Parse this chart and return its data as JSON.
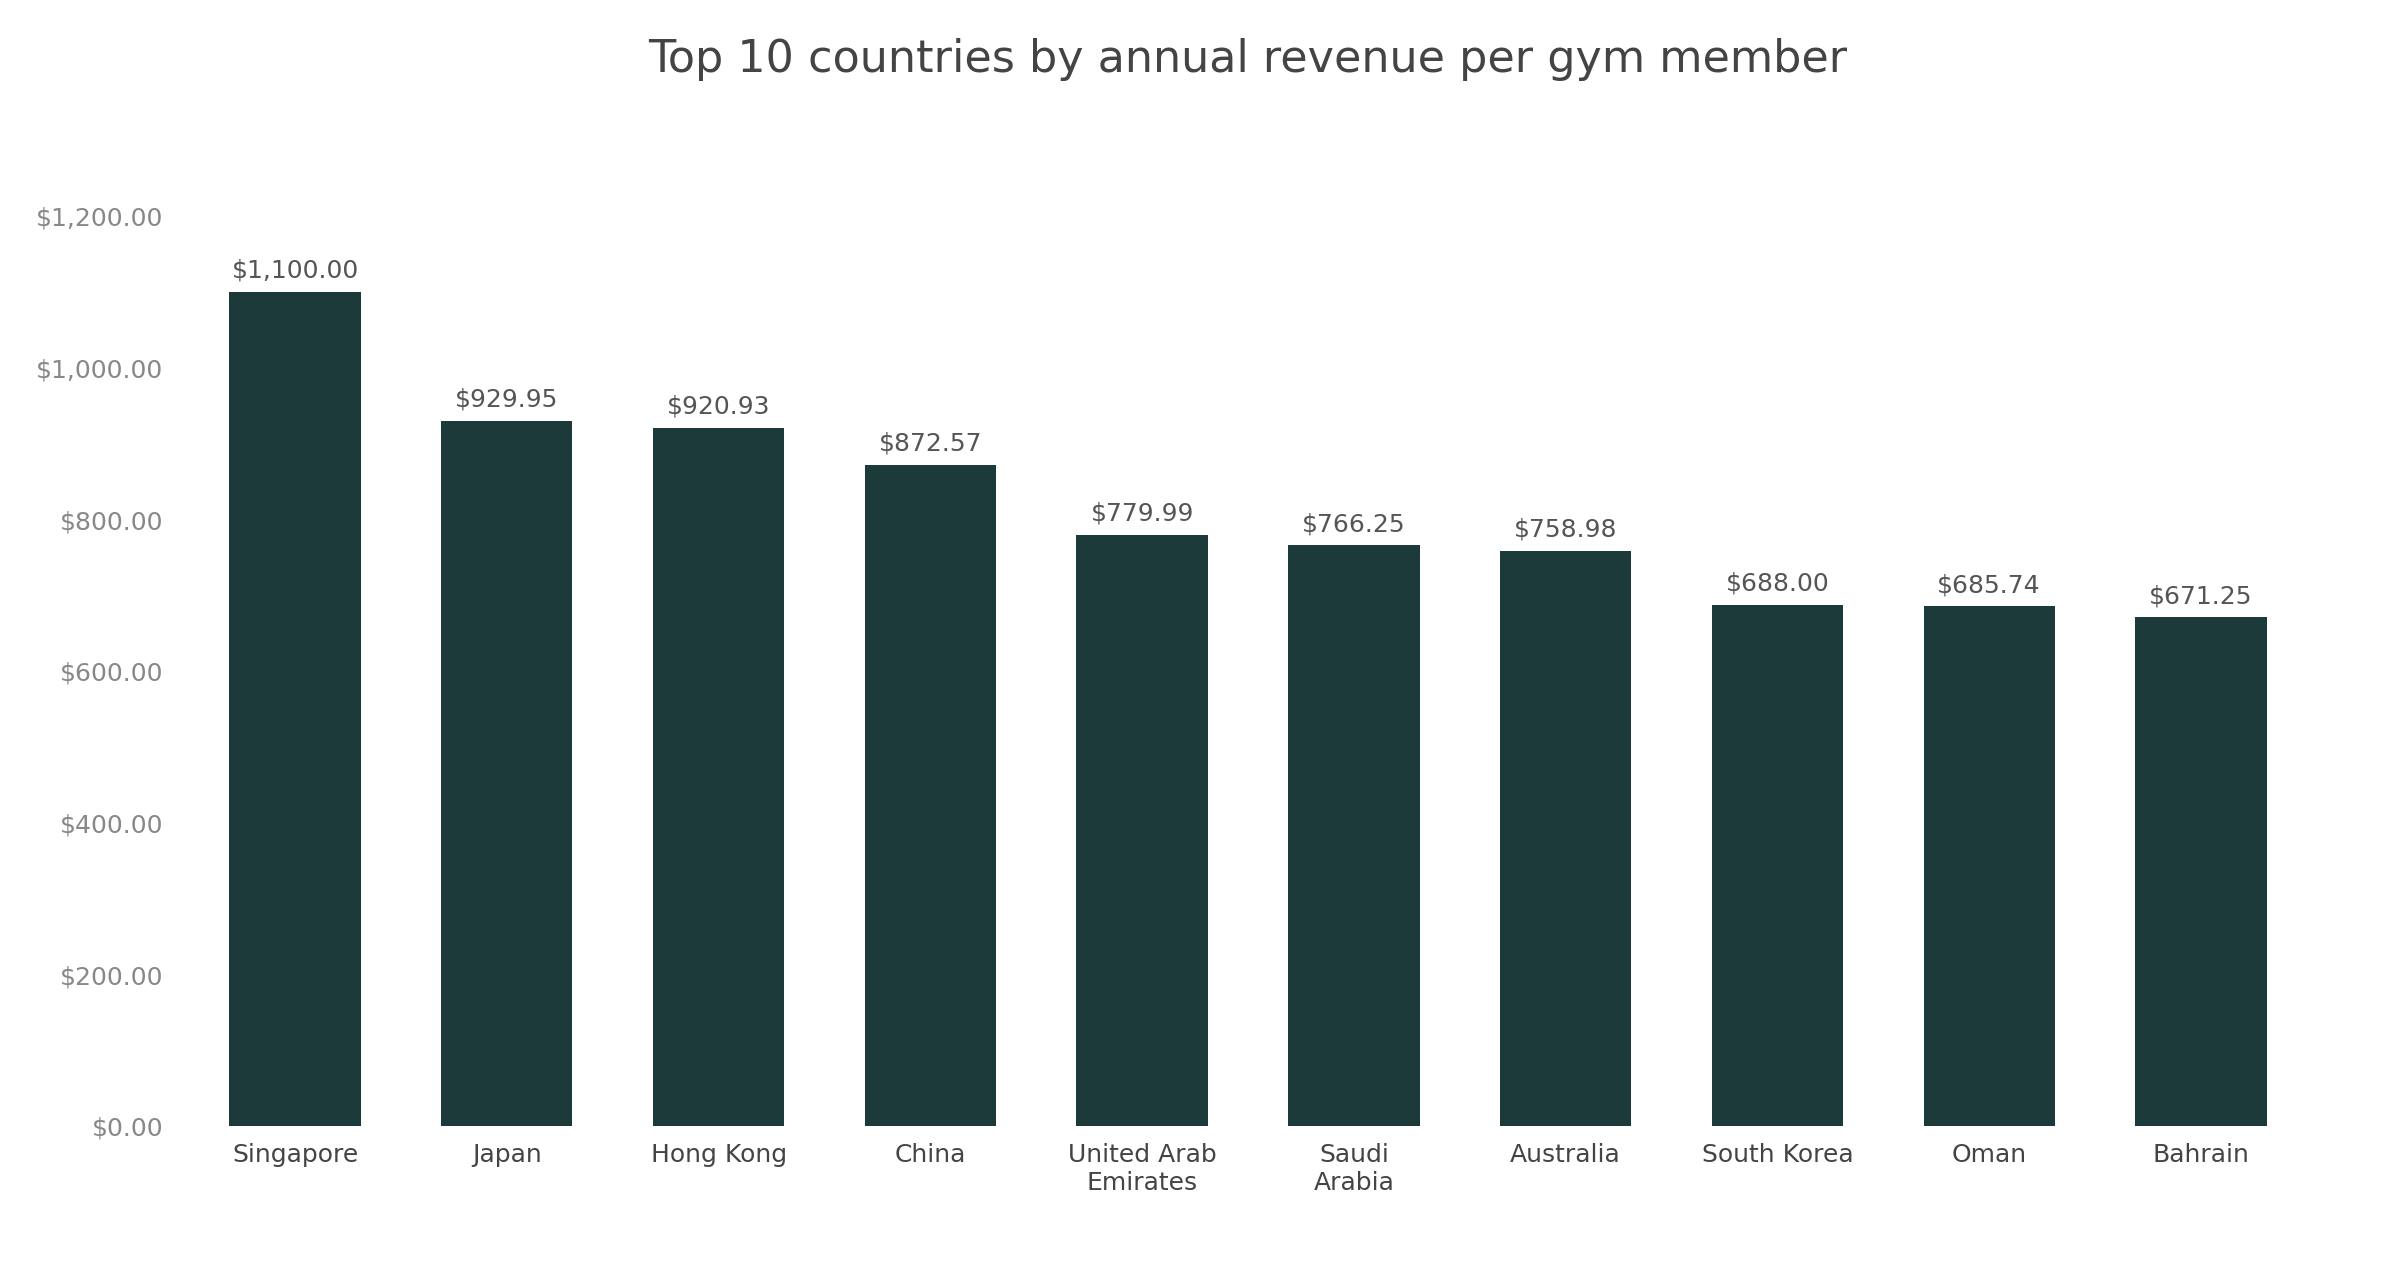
{
  "title": "Top 10 countries by annual revenue per gym member",
  "categories": [
    "Singapore",
    "Japan",
    "Hong Kong",
    "China",
    "United Arab\nEmirates",
    "Saudi\nArabia",
    "Australia",
    "South Korea",
    "Oman",
    "Bahrain"
  ],
  "values": [
    1100.0,
    929.95,
    920.93,
    872.57,
    779.99,
    766.25,
    758.98,
    688.0,
    685.74,
    671.25
  ],
  "labels": [
    "$1,100.00",
    "$929.95",
    "$920.93",
    "$872.57",
    "$779.99",
    "$766.25",
    "$758.98",
    "$688.00",
    "$685.74",
    "$671.25"
  ],
  "bar_color": "#1c3a3a",
  "background_color": "#ffffff",
  "title_fontsize": 32,
  "label_fontsize": 18,
  "tick_fontsize": 18,
  "ytick_color": "#888888",
  "xtick_color": "#444444",
  "label_color": "#555555",
  "ylim": [
    0,
    1350
  ],
  "yticks": [
    0,
    200,
    400,
    600,
    800,
    1000,
    1200
  ],
  "bar_width": 0.62
}
